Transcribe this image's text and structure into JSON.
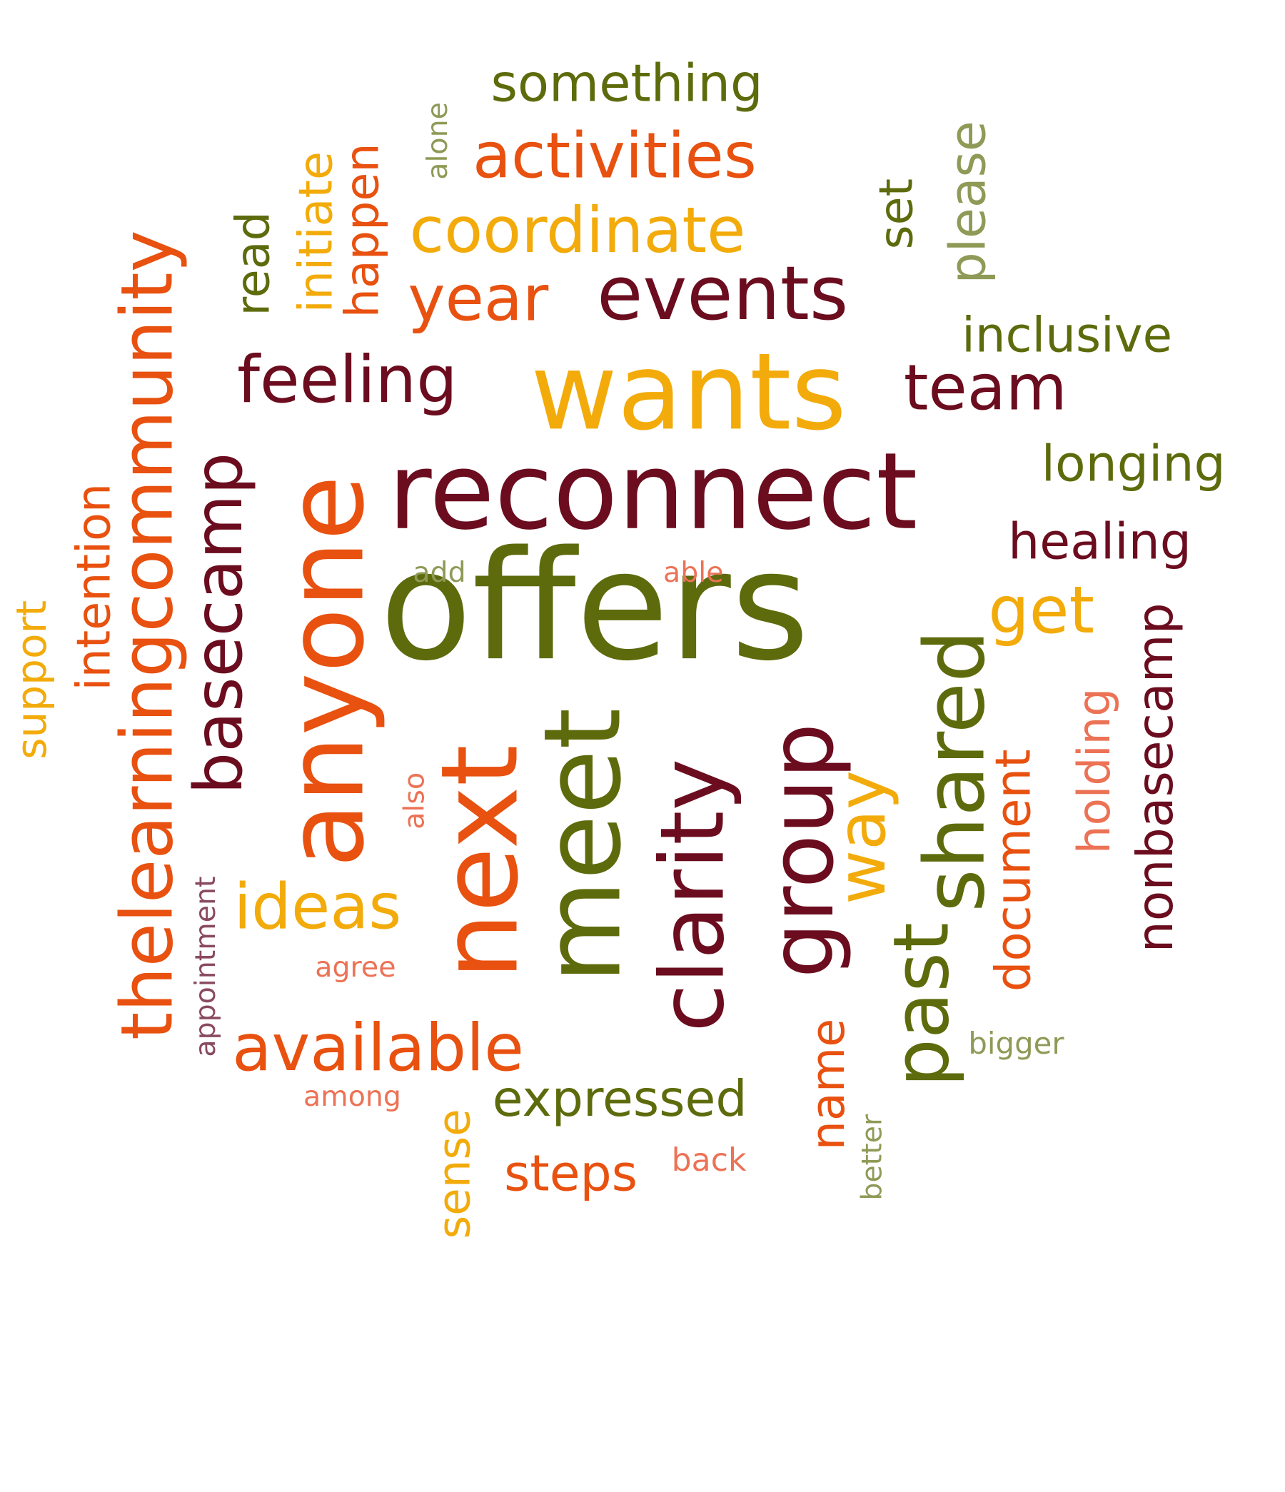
{
  "palette": {
    "olive": "#5e6b0c",
    "maroon": "#6b0d1f",
    "orange": "#e8510f",
    "gold": "#f2ab0a",
    "salmon": "#ec7256",
    "sage": "#8f9a57",
    "plum": "#8a4a5e"
  },
  "words": [
    {
      "text": "offers",
      "color": "olive"
    },
    {
      "text": "reconnect",
      "color": "maroon"
    },
    {
      "text": "wants",
      "color": "gold"
    },
    {
      "text": "anyone",
      "color": "orange"
    },
    {
      "text": "meet",
      "color": "olive"
    },
    {
      "text": "next",
      "color": "orange"
    },
    {
      "text": "group",
      "color": "maroon"
    },
    {
      "text": "clarity",
      "color": "maroon"
    },
    {
      "text": "shared",
      "color": "olive"
    },
    {
      "text": "events",
      "color": "maroon"
    },
    {
      "text": "thelearningcommunity",
      "color": "orange"
    },
    {
      "text": "basecamp",
      "color": "maroon"
    },
    {
      "text": "coordinate",
      "color": "gold"
    },
    {
      "text": "activities",
      "color": "orange"
    },
    {
      "text": "feeling",
      "color": "maroon"
    },
    {
      "text": "year",
      "color": "orange"
    },
    {
      "text": "team",
      "color": "maroon"
    },
    {
      "text": "available",
      "color": "orange"
    },
    {
      "text": "ideas",
      "color": "gold"
    },
    {
      "text": "past",
      "color": "olive"
    },
    {
      "text": "way",
      "color": "gold"
    },
    {
      "text": "something",
      "color": "olive"
    },
    {
      "text": "longing",
      "color": "olive"
    },
    {
      "text": "healing",
      "color": "maroon"
    },
    {
      "text": "inclusive",
      "color": "olive"
    },
    {
      "text": "get",
      "color": "gold"
    },
    {
      "text": "expressed",
      "color": "olive"
    },
    {
      "text": "steps",
      "color": "orange"
    },
    {
      "text": "document",
      "color": "orange"
    },
    {
      "text": "nonbasecamp",
      "color": "maroon"
    },
    {
      "text": "holding",
      "color": "salmon"
    },
    {
      "text": "intention",
      "color": "orange"
    },
    {
      "text": "support",
      "color": "gold"
    },
    {
      "text": "please",
      "color": "sage"
    },
    {
      "text": "initiate",
      "color": "gold"
    },
    {
      "text": "happen",
      "color": "orange"
    },
    {
      "text": "read",
      "color": "olive"
    },
    {
      "text": "set",
      "color": "olive"
    },
    {
      "text": "name",
      "color": "orange"
    },
    {
      "text": "sense",
      "color": "gold"
    },
    {
      "text": "alone",
      "color": "sage"
    },
    {
      "text": "add",
      "color": "sage"
    },
    {
      "text": "able",
      "color": "salmon"
    },
    {
      "text": "also",
      "color": "salmon"
    },
    {
      "text": "appointment",
      "color": "plum"
    },
    {
      "text": "agree",
      "color": "salmon"
    },
    {
      "text": "among",
      "color": "salmon"
    },
    {
      "text": "back",
      "color": "salmon"
    },
    {
      "text": "bigger",
      "color": "sage"
    },
    {
      "text": "better",
      "color": "sage"
    }
  ]
}
